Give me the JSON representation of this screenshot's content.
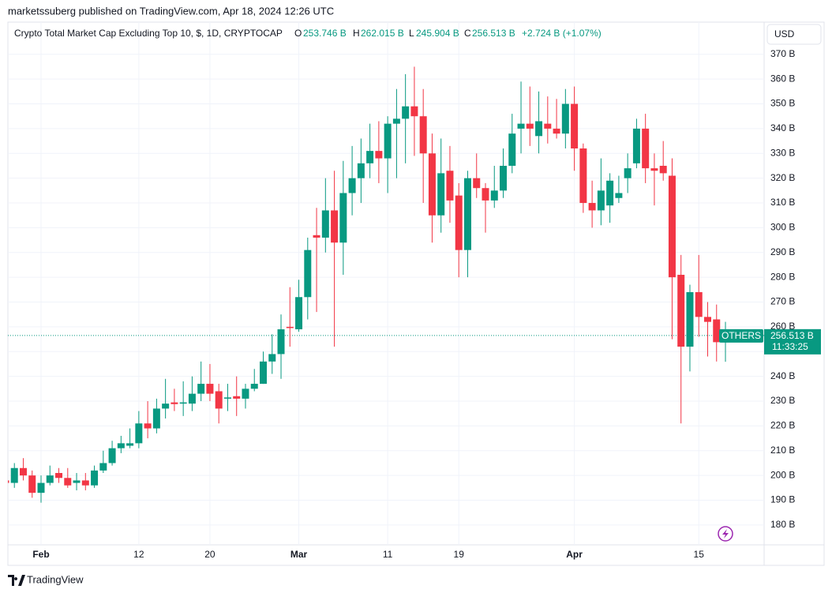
{
  "header": {
    "published": "marketssuberg published on TradingView.com, Apr 18, 2024 12:26 UTC",
    "o_label": "O",
    "o_value": "253.746 B",
    "h_label": "H",
    "h_value": "262.015 B",
    "l_label": "L",
    "l_value": "245.904 B",
    "c_label": "C",
    "c_value": "256.513 B",
    "change": "+2.724 B (+1.07%)",
    "currency": "USD"
  },
  "price_label": {
    "symbol": "OTHERS",
    "price": "256.513 B",
    "countdown": "11:33:25"
  },
  "footer": {
    "brand": "TradingView"
  },
  "chart_data": {
    "type": "candlestick",
    "title": "Crypto Total Market Cap Excluding Top 10, $, 1D, CRYPTOCAP",
    "up_color": "#089981",
    "down_color": "#f23645",
    "grid": true,
    "ylim": [
      172,
      383
    ],
    "yticks": [
      {
        "value": 180,
        "label": "180 B"
      },
      {
        "value": 190,
        "label": "190 B"
      },
      {
        "value": 200,
        "label": "200 B"
      },
      {
        "value": 210,
        "label": "210 B"
      },
      {
        "value": 220,
        "label": "220 B"
      },
      {
        "value": 230,
        "label": "230 B"
      },
      {
        "value": 240,
        "label": "240 B"
      },
      {
        "value": 250,
        "label": "250 B"
      },
      {
        "value": 260,
        "label": "260 B"
      },
      {
        "value": 270,
        "label": "270 B"
      },
      {
        "value": 280,
        "label": "280 B"
      },
      {
        "value": 290,
        "label": "290 B"
      },
      {
        "value": 300,
        "label": "300 B"
      },
      {
        "value": 310,
        "label": "310 B"
      },
      {
        "value": 320,
        "label": "320 B"
      },
      {
        "value": 330,
        "label": "330 B"
      },
      {
        "value": 340,
        "label": "340 B"
      },
      {
        "value": 350,
        "label": "350 B"
      },
      {
        "value": 360,
        "label": "360 B"
      },
      {
        "value": 370,
        "label": "370 B"
      }
    ],
    "last_price": 256.513,
    "categories": [
      null,
      null,
      null,
      null,
      "Feb",
      null,
      null,
      null,
      null,
      null,
      null,
      null,
      null,
      null,
      null,
      "12",
      null,
      null,
      null,
      null,
      null,
      null,
      null,
      "20",
      null,
      null,
      null,
      null,
      null,
      null,
      null,
      null,
      null,
      "Mar",
      null,
      null,
      null,
      null,
      null,
      null,
      null,
      null,
      null,
      "11",
      null,
      null,
      null,
      null,
      null,
      null,
      null,
      "19",
      null,
      null,
      null,
      null,
      null,
      null,
      null,
      null,
      null,
      null,
      null,
      null,
      "Apr",
      null,
      null,
      null,
      null,
      null,
      null,
      null,
      null,
      null,
      null,
      null,
      null,
      null,
      "15",
      null,
      null,
      null
    ],
    "open": [
      198,
      197,
      203,
      200,
      193,
      197,
      201,
      199,
      197,
      198,
      196,
      202,
      205,
      211,
      212,
      213,
      221,
      219,
      227,
      229.5,
      229,
      229,
      233,
      237,
      234,
      231,
      232,
      231,
      235,
      237,
      246,
      249,
      260,
      259,
      272,
      297,
      296,
      307,
      294,
      314,
      320,
      326,
      331,
      328,
      342,
      344,
      349,
      345,
      330,
      305,
      323,
      313,
      291,
      320,
      316,
      311,
      315,
      325,
      340,
      342,
      337,
      342,
      340,
      338,
      350,
      332,
      310,
      307,
      309,
      312,
      320,
      326,
      340,
      324,
      325,
      321,
      281,
      252,
      274,
      264,
      263,
      253.746
    ],
    "high": [
      199,
      205,
      207,
      202,
      200,
      204,
      203,
      203,
      201,
      201,
      204,
      210,
      214,
      216,
      219,
      226,
      230,
      231,
      239,
      235,
      238,
      240,
      246,
      245,
      237,
      237,
      240,
      237,
      243,
      250,
      257,
      265,
      276,
      279,
      296,
      308,
      320,
      323,
      327,
      333,
      336,
      342,
      343,
      345,
      356,
      362,
      365,
      356,
      338,
      336,
      333,
      318,
      323,
      330,
      318,
      325,
      332,
      346,
      359,
      357,
      355,
      353,
      352,
      356,
      357,
      334,
      319,
      328,
      322,
      321,
      330,
      344,
      346,
      330,
      335,
      328,
      289,
      277,
      289,
      270,
      269,
      262.015
    ],
    "low": [
      195,
      195,
      198,
      191,
      189,
      196,
      197,
      195,
      194,
      194,
      195,
      201,
      204,
      209,
      211,
      211,
      215,
      217,
      223,
      226,
      224,
      226,
      230,
      230,
      221,
      226,
      224,
      227,
      234,
      237,
      241,
      239,
      252,
      258,
      263,
      266,
      290,
      252,
      281,
      305,
      310,
      320,
      318,
      314,
      320,
      326,
      329,
      310,
      294,
      298,
      302,
      280,
      280,
      312,
      298,
      308,
      312,
      322,
      330,
      333,
      330,
      334,
      336,
      332,
      323,
      306,
      300,
      301,
      302,
      310,
      314,
      324,
      318,
      309,
      319,
      255,
      221,
      242,
      256,
      248,
      246,
      245.904
    ],
    "close": [
      197,
      203,
      200,
      193,
      197,
      200,
      199,
      196,
      198,
      196,
      202,
      205,
      211,
      213,
      213,
      221,
      219,
      227,
      229,
      228.8,
      229.5,
      233,
      237,
      233,
      227,
      231.5,
      231,
      235,
      237,
      246,
      249,
      259,
      259.5,
      272,
      291,
      296,
      307,
      294,
      314,
      320,
      326,
      331,
      328,
      342,
      344,
      349,
      345,
      330,
      305,
      322,
      311,
      291,
      320,
      316,
      311,
      315,
      325,
      338,
      342,
      340,
      343,
      340,
      338,
      350,
      332,
      310,
      307,
      315,
      319,
      314,
      324,
      340,
      324,
      323,
      322,
      280,
      252,
      274,
      264,
      262,
      253.8,
      256.513
    ]
  }
}
